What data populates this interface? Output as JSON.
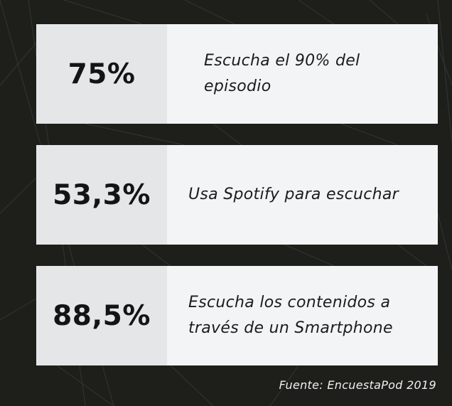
{
  "stats": [
    {
      "value": "75%",
      "description": "Escucha el 90% del episodio"
    },
    {
      "value": "53,3%",
      "description": "Usa Spotify para escuchar"
    },
    {
      "value": "88,5%",
      "description": "Escucha los contenidos a través de un Smartphone"
    }
  ],
  "source": "Fuente: EncuestaPod 2019",
  "colors": {
    "background": "#1e1e1b",
    "card": "#f3f4f6",
    "stat_panel": "#e5e6e8",
    "text": "#141414"
  }
}
